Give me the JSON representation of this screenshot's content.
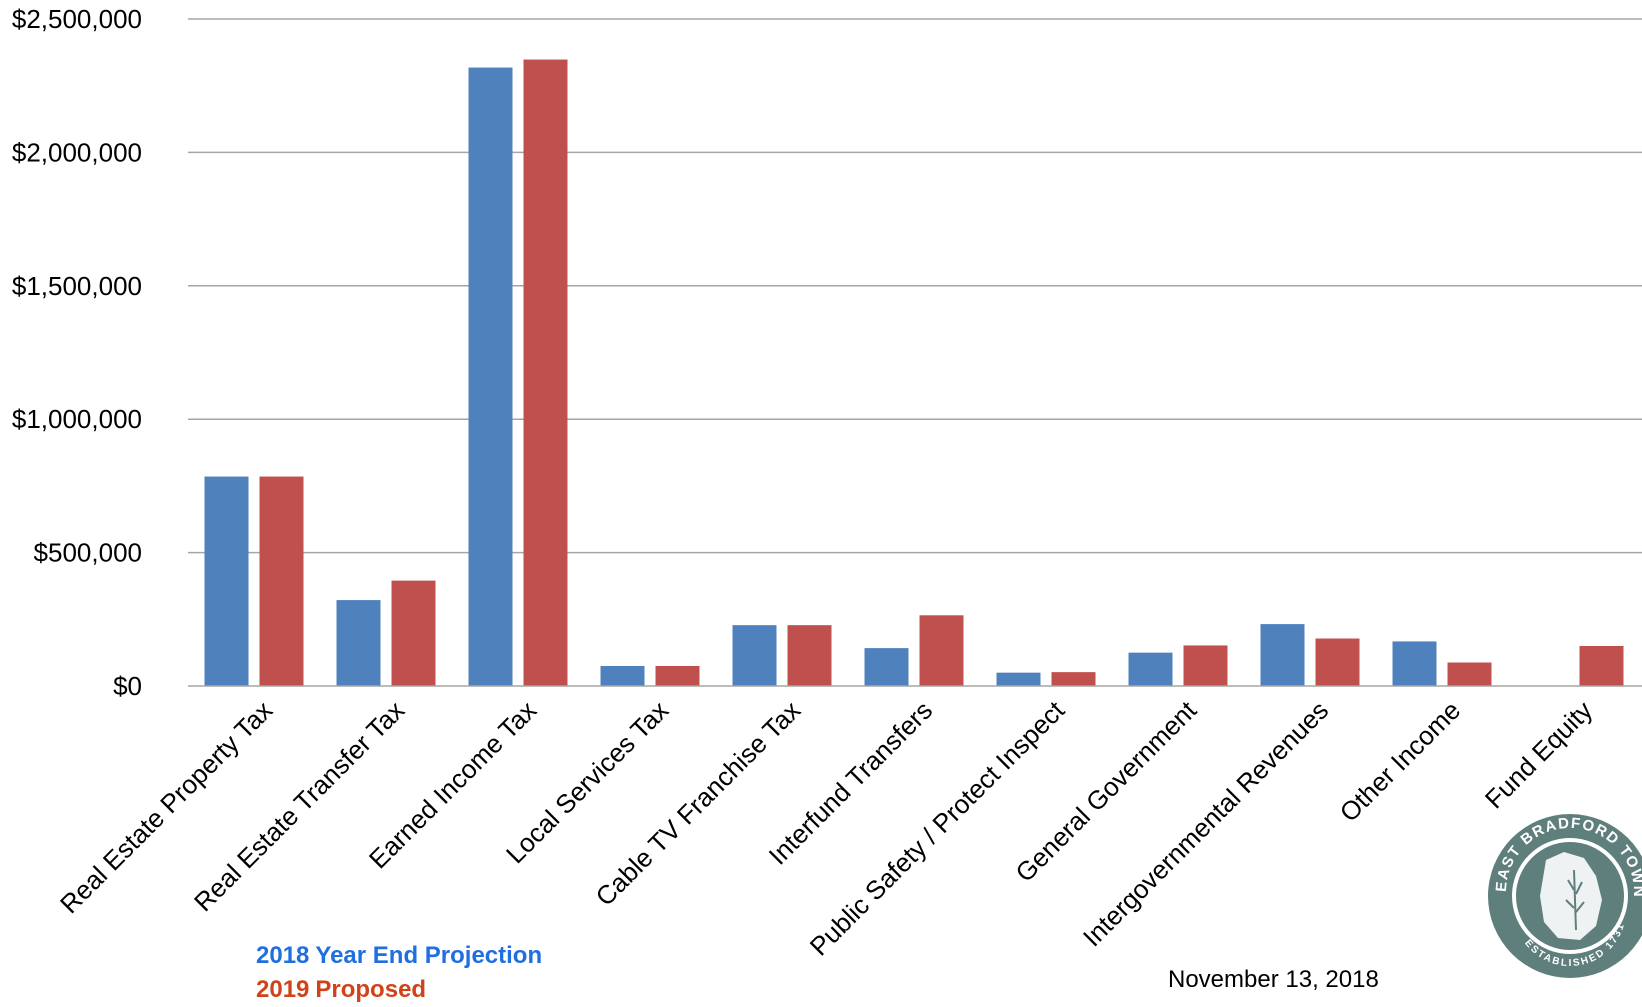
{
  "chart_data": {
    "type": "bar",
    "categories": [
      "Real Estate Property Tax",
      "Real Estate Transfer Tax",
      "Earned Income Tax",
      "Local Services Tax",
      "Cable TV Franchise Tax",
      "Interfund Transfers",
      "Public Safety / Protect Inspect",
      "General Government",
      "Intergovernmental Revenues",
      "Other Income",
      "Fund Equity"
    ],
    "series": [
      {
        "name": "2018 Year End Projection",
        "color": "#4f81bd",
        "values": [
          785000,
          322000,
          2318000,
          75000,
          228000,
          142000,
          50000,
          125000,
          232000,
          167000,
          0
        ]
      },
      {
        "name": "2019 Proposed",
        "color": "#c0504d",
        "values": [
          785000,
          395000,
          2348000,
          75000,
          228000,
          265000,
          52000,
          152000,
          178000,
          88000,
          150000
        ]
      }
    ],
    "ylim": [
      0,
      2500000
    ],
    "yticks": [
      "$0",
      "$500,000",
      "$1,000,000",
      "$1,500,000",
      "$2,000,000",
      "$2,500,000"
    ],
    "ytick_values": [
      0,
      500000,
      1000000,
      1500000,
      2000000,
      2500000
    ],
    "grid": true,
    "legend": {
      "placement": "bottom-left",
      "entries": [
        {
          "year": "2018",
          "label": "Year End Projection",
          "color": "#1f6fe0"
        },
        {
          "year": "2019",
          "label": "Proposed",
          "color": "#d0431a"
        }
      ]
    }
  },
  "date_text": "November 13, 2018",
  "seal": {
    "icon": "township-seal-icon",
    "color": "#5f7f7d",
    "text_top": "EAST BRADFORD TOWNSHIP",
    "text_bottom": "ESTABLISHED 1731"
  }
}
